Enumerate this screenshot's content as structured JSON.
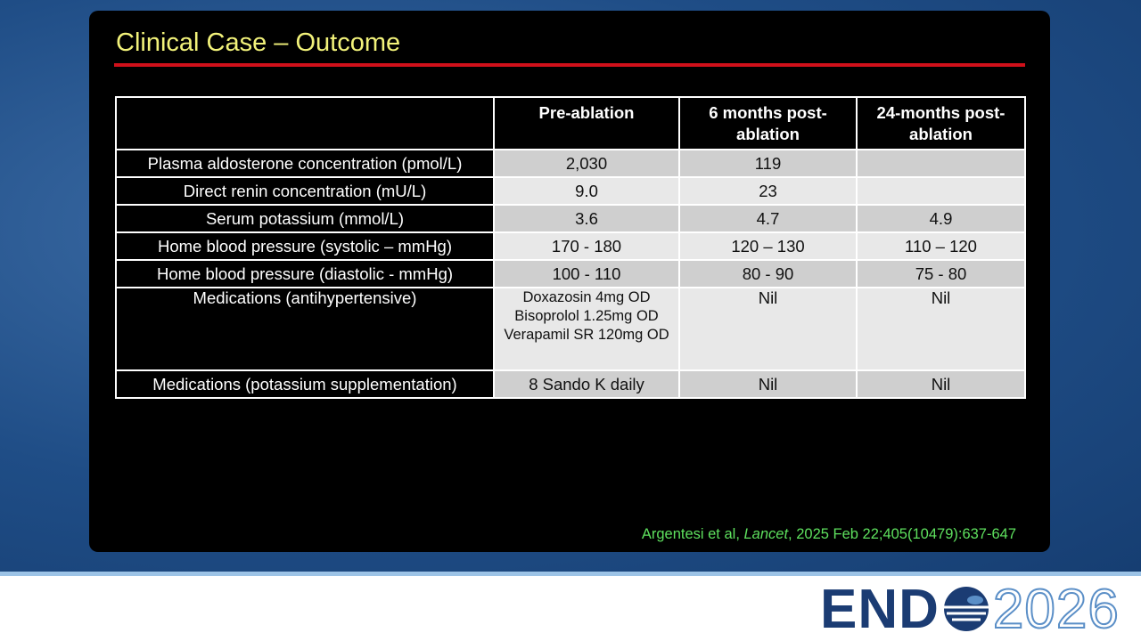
{
  "slide": {
    "title": "Clinical Case – Outcome",
    "table": {
      "header": [
        null,
        "Pre-ablation",
        "6 months post-ablation",
        "24-months post-ablation"
      ],
      "rows": [
        [
          "Plasma aldosterone concentration (pmol/L)",
          "2,030",
          "119",
          null
        ],
        [
          "Direct renin concentration (mU/L)",
          "9.0",
          "23",
          null
        ],
        [
          "Serum potassium (mmol/L)",
          "3.6",
          "4.7",
          "4.9"
        ],
        [
          "Home blood pressure (systolic – mmHg)",
          "170 - 180",
          "120 – 130",
          "110 – 120"
        ],
        [
          "Home blood pressure (diastolic - mmHg)",
          "100 - 110",
          "80 - 90",
          "75 - 80"
        ],
        [
          "Medications (antihypertensive)",
          [
            "Doxazosin 4mg OD",
            "Bisoprolol 1.25mg OD",
            "Verapamil SR 120mg OD"
          ],
          "Nil",
          "Nil"
        ],
        [
          "Medications (potassium supplementation)",
          "8 Sando K daily",
          "Nil",
          "Nil"
        ]
      ]
    },
    "citation": {
      "authors": "Argentesi et al, ",
      "journal": "Lancet",
      "details": ", 2025 Feb 22;405(10479):637-647"
    }
  },
  "logo": {
    "left": "END",
    "right": "2026"
  }
}
